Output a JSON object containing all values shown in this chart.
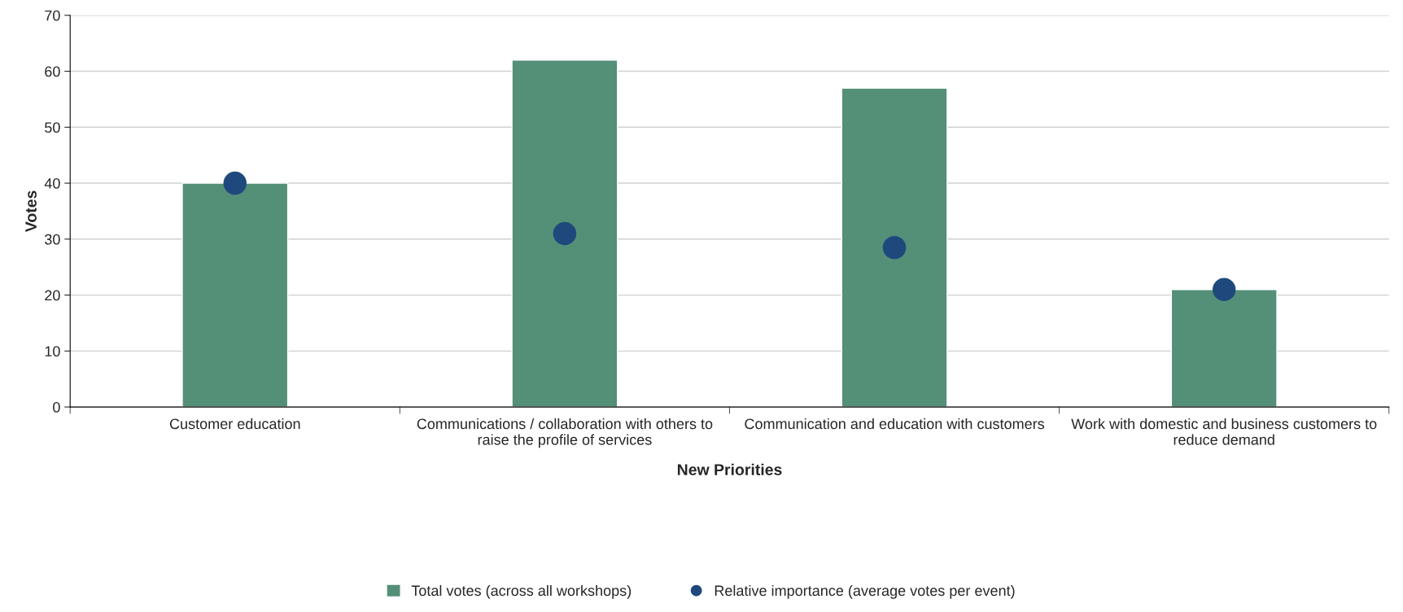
{
  "chart_data": {
    "type": "bar",
    "xlabel": "New Priorities",
    "ylabel": "Votes",
    "categories": [
      "Customer education",
      "Communications / collaboration with others to raise the profile of services",
      "Communication and education with customers",
      "Work with domestic and business customers to reduce demand"
    ],
    "series": [
      {
        "name": "Total votes (across all workshops)",
        "color": "#548f78",
        "values": [
          40,
          62,
          57,
          21
        ]
      },
      {
        "name": "Relative importance (average votes per event)",
        "type": "scatter",
        "color": "#1f497d",
        "marker": "circle",
        "values": [
          40,
          31,
          28.5,
          21
        ]
      }
    ],
    "ylim": [
      0,
      70
    ],
    "yticks": [
      0,
      10,
      20,
      30,
      40,
      50,
      60,
      70
    ],
    "grid": "y",
    "legend": "bottom"
  }
}
